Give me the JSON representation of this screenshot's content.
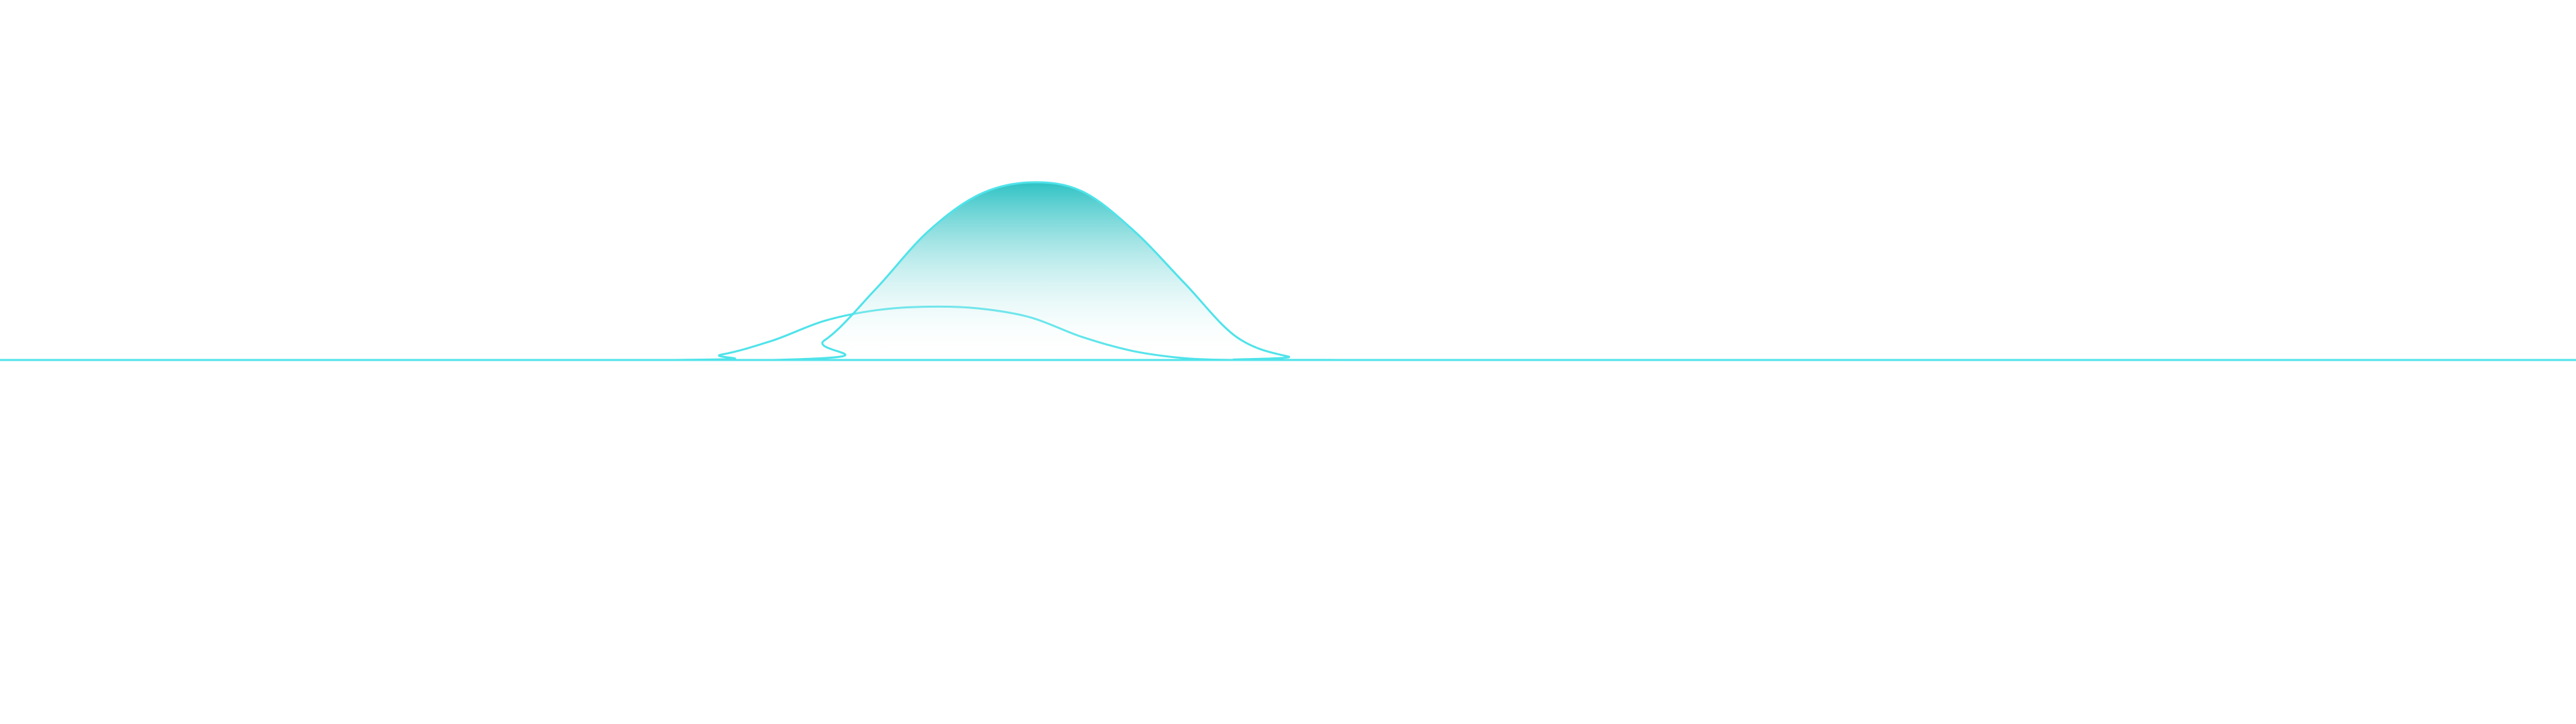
{
  "chart_data": {
    "type": "area",
    "title": "",
    "xlabel": "",
    "ylabel": "",
    "grid": false,
    "legend": "none",
    "xlim": [
      0,
      100
    ],
    "ylim": [
      0,
      1
    ],
    "series": [
      {
        "x": [
          0,
          26,
          28,
          30,
          32,
          34,
          36,
          38,
          40,
          42,
          44,
          46,
          48,
          50,
          100
        ],
        "values": [
          0,
          0,
          0.03,
          0.11,
          0.22,
          0.28,
          0.3,
          0.29,
          0.24,
          0.13,
          0.05,
          0.01,
          0,
          0,
          0
        ],
        "line_color": "#4fe3ea",
        "fill": false
      },
      {
        "x": [
          0,
          30,
          32,
          34,
          36,
          38,
          40,
          42,
          44,
          46,
          48,
          50,
          52,
          100
        ],
        "values": [
          0,
          0,
          0.11,
          0.4,
          0.72,
          0.93,
          1.0,
          0.95,
          0.73,
          0.43,
          0.13,
          0.02,
          0,
          0
        ],
        "line_color": "#4fe3ea",
        "fill": true,
        "fill_color_top": "#2fc2c4",
        "fill_color_bottom": "#ffffff"
      }
    ]
  }
}
